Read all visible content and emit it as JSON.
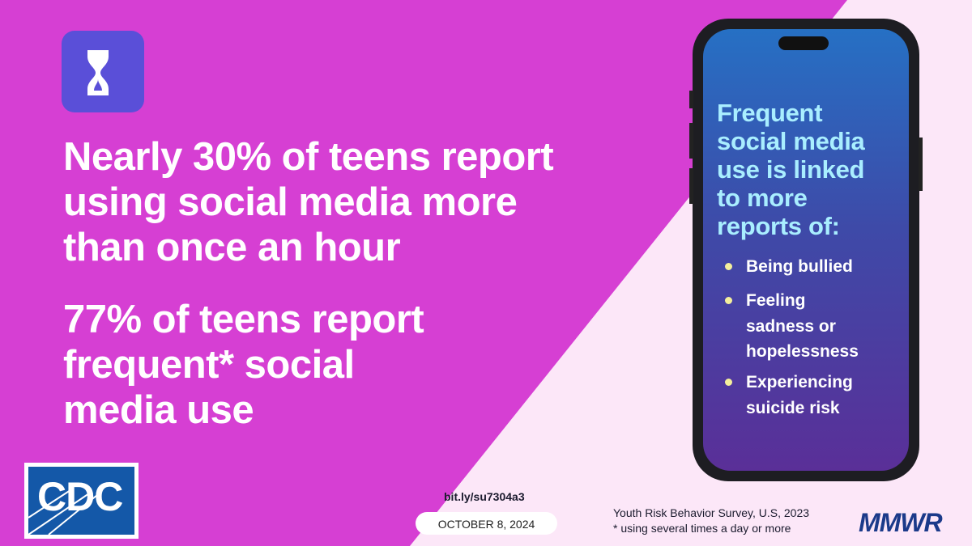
{
  "headline": {
    "lines": [
      "Nearly 30% of teens report",
      "using social media more",
      "than once an hour"
    ]
  },
  "subheadline": {
    "lines": [
      "77% of teens report",
      "frequent*  social",
      "media use"
    ]
  },
  "phone": {
    "heading": [
      "Frequent",
      "social media",
      "use  is linked",
      "to more",
      "reports of:"
    ],
    "bullets": [
      [
        "Being bullied"
      ],
      [
        "Feeling",
        "sadness or",
        "hopelessness"
      ],
      [
        "Experiencing",
        "suicide risk"
      ]
    ]
  },
  "footer": {
    "link": "bit.ly/su7304a3",
    "date": "OCTOBER 8, 2024",
    "source": "Youth Risk Behavior Survey, U.S, 2023",
    "note": "* using several times a day or more",
    "brand": "MMWR",
    "logo": "CDC"
  }
}
